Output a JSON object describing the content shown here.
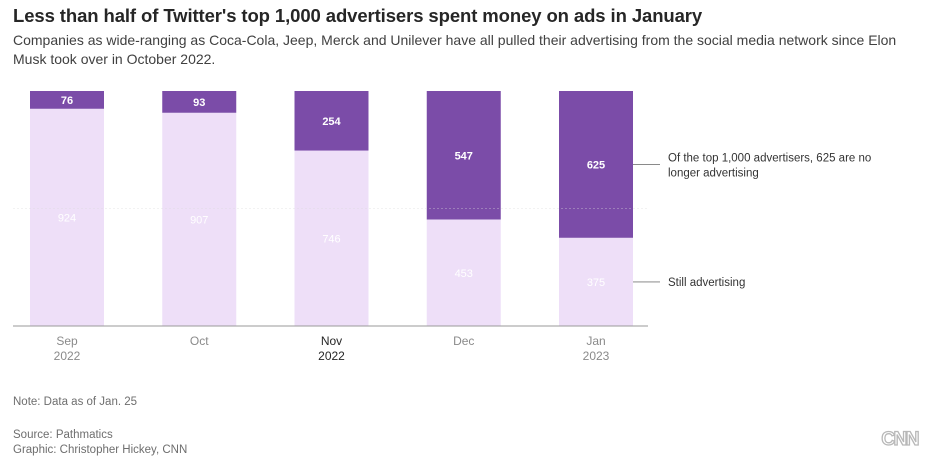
{
  "header": {
    "title": "Less than half of Twitter's top 1,000 advertisers spent money on ads in January",
    "subtitle": "Companies as wide-ranging as Coca-Cola, Jeep, Merck and Unilever have all pulled their advertising from the social media network since Elon Musk took over in October 2022."
  },
  "footer": {
    "note": "Note: Data as of Jan. 25",
    "source": "Source: Pathmatics",
    "graphic": "Graphic: Christopher Hickey, CNN",
    "logo_text": "CNN"
  },
  "colors": {
    "stopped": "#7b4ca8",
    "still": "#eedff8",
    "text_dark": "#262626",
    "text_muted": "#8a8a8a"
  },
  "chart_data": {
    "type": "bar",
    "stacked": true,
    "orientation": "vertical",
    "total": 1000,
    "ylim": [
      0,
      1000
    ],
    "grid": "single horizontal line",
    "categories": [
      {
        "label": "Sep",
        "sublabel": "2022",
        "highlight": false
      },
      {
        "label": "Oct",
        "sublabel": "",
        "highlight": false
      },
      {
        "label": "Nov",
        "sublabel": "2022",
        "highlight": true
      },
      {
        "label": "Dec",
        "sublabel": "",
        "highlight": false
      },
      {
        "label": "Jan",
        "sublabel": "2023",
        "highlight": false
      }
    ],
    "series": [
      {
        "name": "Still advertising",
        "values": [
          924,
          907,
          746,
          453,
          375
        ],
        "color": "#eedff8"
      },
      {
        "name": "Of the top 1,000 advertisers, 625 are no longer advertising",
        "values": [
          76,
          93,
          254,
          547,
          625
        ],
        "color": "#7b4ca8"
      }
    ],
    "annotations": [
      {
        "text_lines": [
          "Of the top 1,000 advertisers, 625 are no",
          "longer advertising"
        ],
        "series": "stopped",
        "category_index": 4
      },
      {
        "text_lines": [
          "Still advertising"
        ],
        "series": "still",
        "category_index": 4
      }
    ]
  }
}
